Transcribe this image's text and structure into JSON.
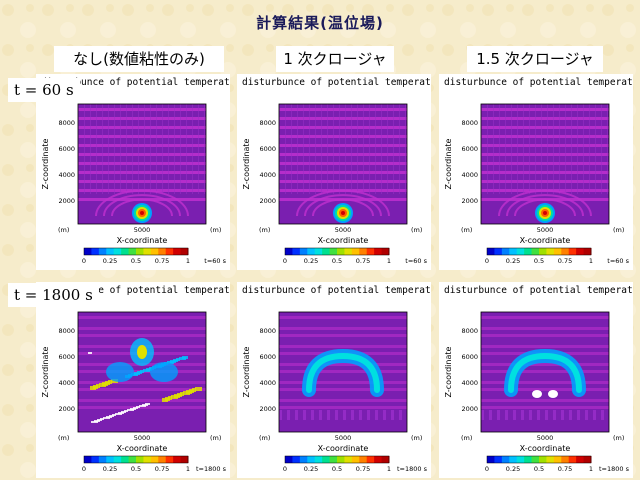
{
  "slide_title": "計算結果(温位場)",
  "columns": [
    {
      "label": "なし(数値粘性のみ)"
    },
    {
      "label": "1 次クロージャ"
    },
    {
      "label": "1.5 次クロージャ"
    }
  ],
  "rows": [
    {
      "time_label": "t = 60 s",
      "time_stamp": "t=60 s"
    },
    {
      "time_label": "t = 1800 s",
      "time_stamp": "t=1800 s"
    }
  ],
  "panel": {
    "title": "disturbunce of potential temperature",
    "xlabel": "X-coordinate",
    "ylabel": "Z-coordinate",
    "x_tick": "5000",
    "unit": "(m)",
    "y_ticks": [
      "8000",
      "6000",
      "4000",
      "2000"
    ],
    "colorbar_ticks": [
      "0",
      "0.25",
      "0.5",
      "0.75",
      "1"
    ]
  },
  "colors": {
    "background": "#f6eccb",
    "field_purple": "#7a1fb0",
    "field_magenta": "#c030d0",
    "title_color": "#1a1a5a"
  }
}
